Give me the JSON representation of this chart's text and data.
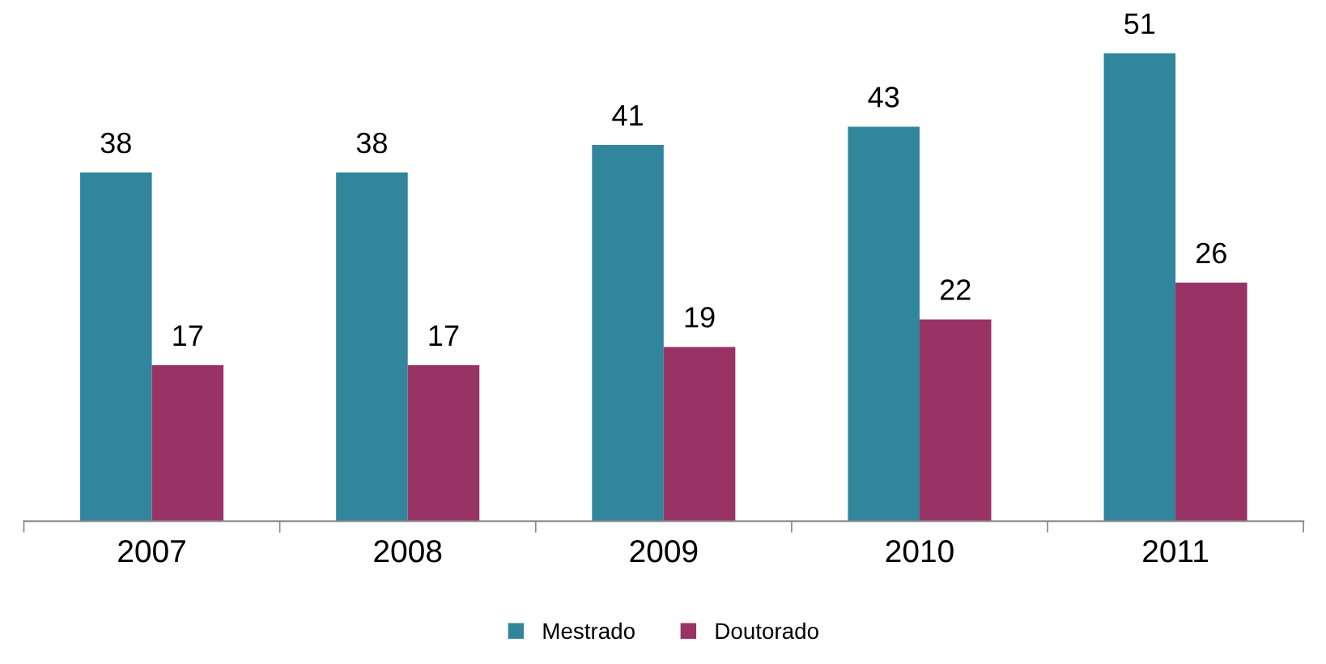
{
  "chart_data": {
    "type": "bar",
    "categories": [
      "2007",
      "2008",
      "2009",
      "2010",
      "2011"
    ],
    "series": [
      {
        "name": "Mestrado",
        "color": "#31859c",
        "values": [
          38,
          38,
          41,
          43,
          51
        ]
      },
      {
        "name": "Doutorado",
        "color": "#993366",
        "values": [
          17,
          17,
          19,
          22,
          26
        ]
      }
    ],
    "data_labels": true,
    "legend": "bottom",
    "grid": false
  }
}
